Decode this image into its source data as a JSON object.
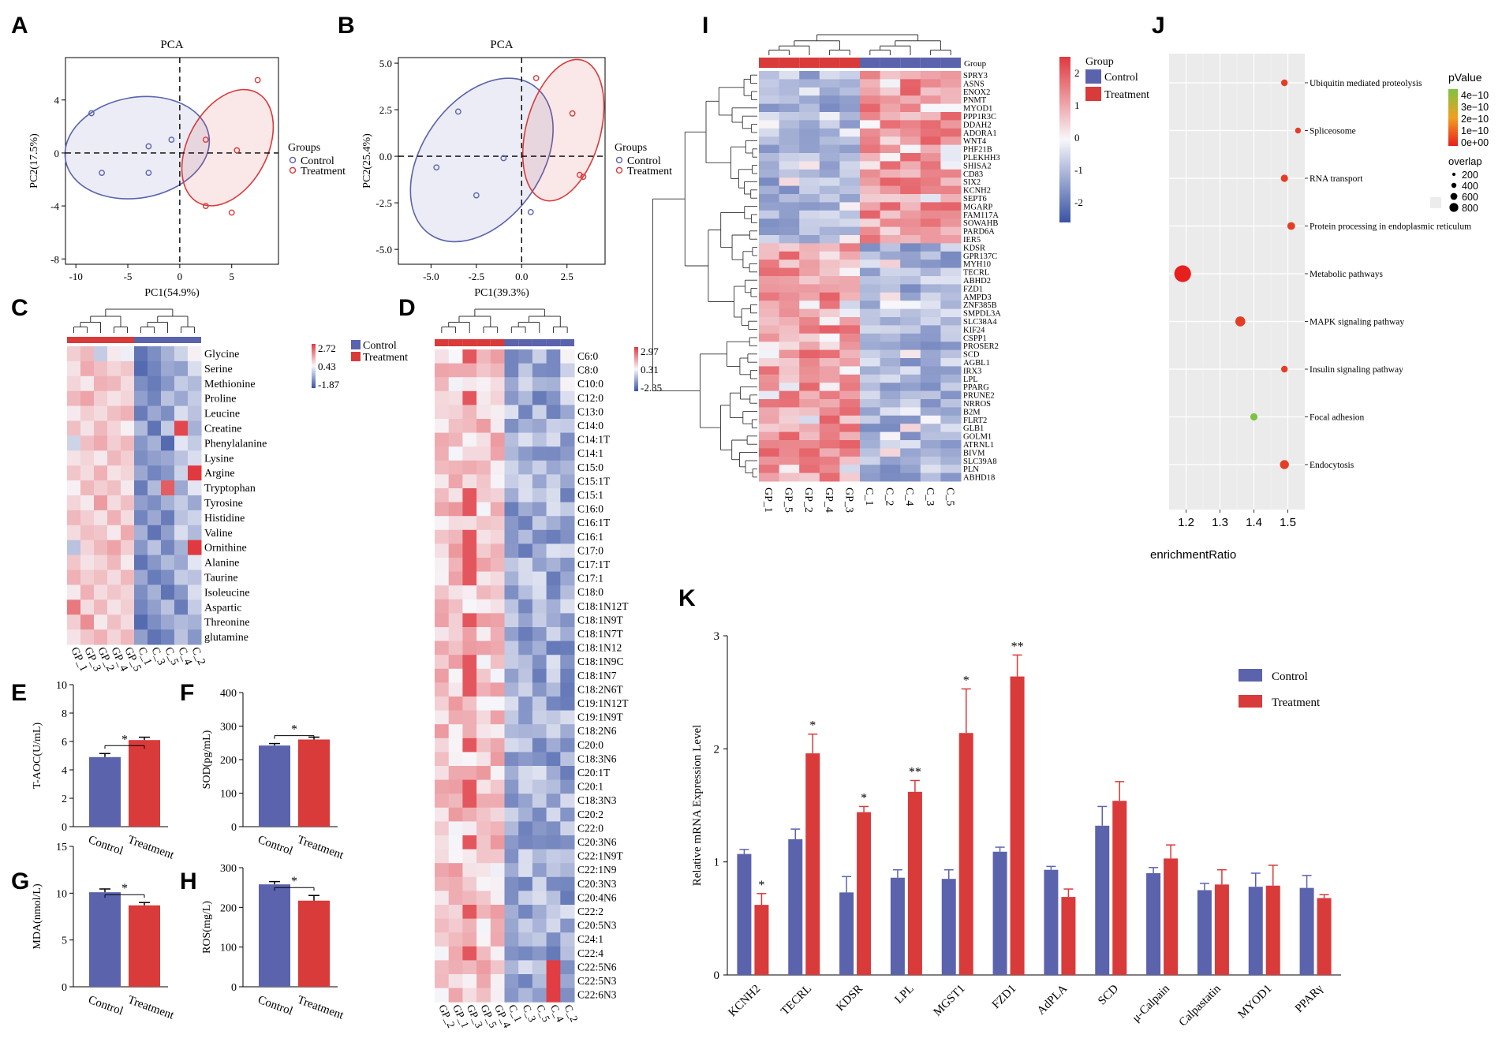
{
  "panels": {
    "A": {
      "letter": "A"
    },
    "B": {
      "letter": "B"
    },
    "C": {
      "letter": "C"
    },
    "D": {
      "letter": "D"
    },
    "E": {
      "letter": "E"
    },
    "F": {
      "letter": "F"
    },
    "G": {
      "letter": "G"
    },
    "H": {
      "letter": "H"
    },
    "I": {
      "letter": "I"
    },
    "J": {
      "letter": "J"
    },
    "K": {
      "letter": "K"
    }
  },
  "colors": {
    "control": "#5b63ad",
    "treatment": "#d93a3a",
    "heat_low": "#3953a4",
    "heat_mid": "#f7f7fb",
    "heat_high": "#e0383f"
  },
  "chart_data": [
    {
      "id": "A",
      "type": "scatter",
      "title": "PCA",
      "xlabel": "PC1(54.9%)",
      "ylabel": "PC2(17.5%)",
      "xlim": [
        -11,
        9.5
      ],
      "ylim": [
        -8.4,
        7.2
      ],
      "xticks": [
        -10,
        -5,
        0,
        5
      ],
      "yticks": [
        -8,
        -4,
        0,
        4
      ],
      "legend_title": "Groups",
      "series": [
        {
          "name": "Control",
          "points": [
            [
              -8.5,
              3.0
            ],
            [
              -7.5,
              -1.5
            ],
            [
              -3.0,
              0.5
            ],
            [
              -3.0,
              -1.5
            ],
            [
              -0.8,
              1.0
            ]
          ]
        },
        {
          "name": "Treatment",
          "points": [
            [
              7.5,
              5.5
            ],
            [
              2.5,
              1.0
            ],
            [
              5.5,
              0.2
            ],
            [
              2.5,
              -4.0
            ],
            [
              5.0,
              -4.5
            ]
          ]
        }
      ],
      "ellipses": [
        {
          "group": "Control",
          "cx": -4.1,
          "cy": 0.4,
          "rx": 7.0,
          "ry": 3.8,
          "angle": -10
        },
        {
          "group": "Treatment",
          "cx": 4.6,
          "cy": 0.4,
          "rx": 6.0,
          "ry": 3.0,
          "angle": -62
        }
      ]
    },
    {
      "id": "B",
      "type": "scatter",
      "title": "PCA",
      "xlabel": "PC1(39.3%)",
      "ylabel": "PC2(25.4%)",
      "xlim": [
        -6.8,
        4.6
      ],
      "ylim": [
        -5.8,
        5.3
      ],
      "xticks": [
        -5.0,
        -2.5,
        0.0,
        2.5
      ],
      "yticks": [
        5.0,
        2.5,
        0.0,
        -2.5,
        -5.0
      ],
      "xticklabels": [
        "-5.0",
        "-2.5",
        "0.0",
        "2.5"
      ],
      "yticklabels": [
        "5.0",
        "2.5",
        "0.0",
        "-2.5",
        "-5.0"
      ],
      "legend_title": "Groups",
      "series": [
        {
          "name": "Control",
          "points": [
            [
              -3.5,
              2.4
            ],
            [
              -4.7,
              -0.6
            ],
            [
              -2.5,
              -2.1
            ],
            [
              -1.0,
              -0.1
            ],
            [
              0.5,
              -3.0
            ]
          ]
        },
        {
          "name": "Treatment",
          "points": [
            [
              0.8,
              4.2
            ],
            [
              2.8,
              2.3
            ],
            [
              3.2,
              -1.0
            ],
            [
              3.4,
              -1.1
            ]
          ]
        }
      ],
      "ellipses": [
        {
          "group": "Control",
          "cx": -2.2,
          "cy": -0.2,
          "rx": 5.0,
          "ry": 3.2,
          "angle": -55
        },
        {
          "group": "Treatment",
          "cx": 2.3,
          "cy": 1.4,
          "rx": 4.0,
          "ry": 2.0,
          "angle": -75
        }
      ]
    },
    {
      "id": "C",
      "type": "heatmap",
      "rows": [
        "Glycine",
        "Serine",
        "Methionine",
        "Proline",
        "Leucine",
        "Creatine",
        "Phenylalanine",
        "Lysine",
        "Argine",
        "Tryptophan",
        "Tyrosine",
        "Histidine",
        "Valine",
        "Ornithine",
        "Alanine",
        "Taurine",
        "Isoleucine",
        "Aspartic",
        "Threonine",
        "glutamine"
      ],
      "columns": [
        "GP_1",
        "GP_3",
        "GP_2",
        "GP_4",
        "GP_5",
        "C_1",
        "C_3",
        "C_5",
        "C_4",
        "C_2"
      ],
      "groups": [
        "Treatment",
        "Treatment",
        "Treatment",
        "Treatment",
        "Treatment",
        "Control",
        "Control",
        "Control",
        "Control",
        "Control"
      ],
      "scale": {
        "max": "2.72",
        "mid": "0.43",
        "min": "-1.87",
        "vmin": -1.87,
        "vmax": 2.72
      },
      "legend": [
        "Control",
        "Treatment"
      ],
      "values": [
        [
          0.6,
          0.9,
          -0.5,
          0.2,
          -0.1,
          -1.5,
          -1.2,
          -0.8,
          -0.4,
          0.1
        ],
        [
          0.3,
          1.1,
          0.8,
          0.5,
          0.7,
          -1.6,
          -1.3,
          -0.9,
          -1.0,
          -0.3
        ],
        [
          0.5,
          0.2,
          1.0,
          0.9,
          0.4,
          -1.2,
          -1.4,
          -1.1,
          -0.5,
          -0.7
        ],
        [
          0.9,
          1.2,
          0.6,
          0.3,
          0.5,
          -1.0,
          -1.3,
          -0.6,
          -0.9,
          -0.5
        ],
        [
          0.2,
          0.6,
          0.4,
          0.8,
          1.0,
          -1.4,
          -0.9,
          -1.2,
          -0.3,
          -0.6
        ],
        [
          0.8,
          0.3,
          0.9,
          0.5,
          0.1,
          -0.7,
          -1.5,
          -0.5,
          2.5,
          -0.8
        ],
        [
          -0.4,
          0.8,
          1.1,
          0.6,
          0.9,
          -1.1,
          -0.8,
          -1.6,
          -0.2,
          -0.5
        ],
        [
          0.3,
          0.5,
          0.2,
          0.9,
          0.6,
          -1.2,
          -1.0,
          -0.9,
          -0.6,
          -0.3
        ],
        [
          0.7,
          0.4,
          1.0,
          0.3,
          0.5,
          -0.9,
          -1.3,
          -1.1,
          -0.4,
          2.7
        ],
        [
          0.1,
          0.9,
          0.6,
          0.8,
          0.2,
          -1.4,
          -0.7,
          2.2,
          -0.9,
          -0.2
        ],
        [
          0.5,
          0.2,
          1.3,
          0.4,
          0.8,
          -1.0,
          -1.2,
          -0.8,
          -0.5,
          -0.9
        ],
        [
          0.9,
          0.6,
          0.3,
          1.0,
          0.4,
          -1.3,
          -0.9,
          -1.4,
          -0.6,
          -0.4
        ],
        [
          0.4,
          0.8,
          0.7,
          0.2,
          1.1,
          -0.8,
          -1.5,
          -1.0,
          -0.3,
          -0.7
        ],
        [
          -0.6,
          0.5,
          0.9,
          1.2,
          0.6,
          -1.1,
          -0.6,
          -1.3,
          -0.8,
          2.7
        ],
        [
          0.7,
          0.3,
          0.5,
          0.9,
          0.2,
          -1.5,
          -1.1,
          -0.7,
          -0.9,
          -0.2
        ],
        [
          1.0,
          0.6,
          0.8,
          0.4,
          0.9,
          -0.9,
          -1.4,
          -1.2,
          -0.5,
          -0.6
        ],
        [
          0.2,
          1.0,
          0.4,
          0.7,
          0.5,
          -1.2,
          -0.8,
          -1.5,
          -1.1,
          -0.3
        ],
        [
          1.8,
          0.4,
          0.9,
          0.3,
          0.6,
          -1.3,
          -1.0,
          -0.6,
          -1.4,
          -0.5
        ],
        [
          0.6,
          1.5,
          0.2,
          0.8,
          0.4,
          -1.6,
          -1.2,
          -0.9,
          -0.7,
          -0.8
        ],
        [
          0.3,
          0.7,
          1.0,
          0.5,
          0.9,
          -1.0,
          -1.5,
          -1.3,
          -0.6,
          -1.1
        ]
      ]
    },
    {
      "id": "D",
      "type": "heatmap",
      "rows": [
        "C6:0",
        "C8:0",
        "C10:0",
        "C12:0",
        "C13:0",
        "C14:0",
        "C14:1T",
        "C14:1",
        "C15:0",
        "C15:1T",
        "C15:1",
        "C16:0",
        "C16:1T",
        "C16:1",
        "C17:0",
        "C17:1T",
        "C17:1",
        "C18:0",
        "C18:1N12T",
        "C18:1N9T",
        "C18:1N7T",
        "C18:1N12",
        "C18:1N9C",
        "C18:1N7",
        "C18:2N6T",
        "C19:1N12T",
        "C19:1N9T",
        "C18:2N6",
        "C20:0",
        "C18:3N6",
        "C20:1T",
        "C20:1",
        "C18:3N3",
        "C20:2",
        "C22:0",
        "C20:3N6",
        "C22:1N9T",
        "C22:1N9",
        "C20:3N3",
        "C20:4N6",
        "C22:2",
        "C20:5N3",
        "C24:1",
        "C22:4",
        "C22:5N6",
        "C22:5N3",
        "C22:6N3"
      ],
      "columns": [
        "GP_2",
        "GP_1",
        "GP_3",
        "GP_5",
        "GP_4",
        "C_1",
        "C_3",
        "C_5",
        "C_4",
        "C_2"
      ],
      "groups": [
        "Treatment",
        "Treatment",
        "Treatment",
        "Treatment",
        "Treatment",
        "Control",
        "Control",
        "Control",
        "Control",
        "Control"
      ],
      "scale": {
        "max": "2.97",
        "mid": "0.31",
        "min": "-2.35",
        "vmin": -2.35,
        "vmax": 2.97
      }
    },
    {
      "id": "E",
      "type": "bar",
      "ylabel": "T-AOC(U/mL)",
      "ylim": [
        0,
        10
      ],
      "yticks": [
        0,
        2,
        4,
        6,
        8,
        10
      ],
      "categories": [
        "Control",
        "Treatment"
      ],
      "values": [
        4.9,
        6.1
      ],
      "errors": [
        0.25,
        0.2
      ],
      "significance": "*"
    },
    {
      "id": "F",
      "type": "bar",
      "ylabel": "SOD(pg/mL)",
      "ylim": [
        0,
        400
      ],
      "yticks": [
        0,
        100,
        200,
        300,
        400
      ],
      "categories": [
        "Control",
        "Treatment"
      ],
      "values": [
        242,
        260
      ],
      "errors": [
        6,
        7
      ],
      "significance": "*"
    },
    {
      "id": "G",
      "type": "bar",
      "ylabel": "MDA(nmol/L)",
      "ylim": [
        0,
        15
      ],
      "yticks": [
        0,
        5,
        10,
        15
      ],
      "categories": [
        "Control",
        "Treatment"
      ],
      "values": [
        10.1,
        8.7
      ],
      "errors": [
        0.35,
        0.3
      ],
      "significance": "*"
    },
    {
      "id": "H",
      "type": "bar",
      "ylabel": "ROS(mg/L)",
      "ylim": [
        0,
        300
      ],
      "yticks": [
        0,
        100,
        200,
        300
      ],
      "categories": [
        "Control",
        "Treatment"
      ],
      "values": [
        258,
        217
      ],
      "errors": [
        7,
        13
      ],
      "significance": "*"
    },
    {
      "id": "I",
      "type": "heatmap",
      "rows": [
        "SPRY3",
        "ASNS",
        "ENOX2",
        "PNMT",
        "MYOD1",
        "PPP1R3C",
        "DDAH2",
        "ADORA1",
        "WNT4",
        "PHF21B",
        "PLEKHH3",
        "SHISA2",
        "CD83",
        "SIX2",
        "KCNH2",
        "SEPT6",
        "MGARP",
        "FAM117A",
        "SOWAHB",
        "PARD6A",
        "IER5",
        "KDSR",
        "GPR137C",
        "MYH10",
        "TECRL",
        "ABHD2",
        "FZD1",
        "AMPD3",
        "ZNF385B",
        "SMPDL3A",
        "SLC38A4",
        "KIF24",
        "CSPP1",
        "PROSER2",
        "SCD",
        "AGBL1",
        "IRX3",
        "LPL",
        "PPARG",
        "PRUNE2",
        "NRROS",
        "B2M",
        "FLRT2",
        "GLB1",
        "GOLM1",
        "ATRNL1",
        "BIVM",
        "SLC39A8",
        "PLN",
        "ABHD18"
      ],
      "columns": [
        "GP_1",
        "GP_5",
        "GP_2",
        "GP_4",
        "GP_3",
        "C_1",
        "C_2",
        "C_4",
        "C_3",
        "C_5"
      ],
      "groups": [
        "Treatment",
        "Treatment",
        "Treatment",
        "Treatment",
        "Treatment",
        "Control",
        "Control",
        "Control",
        "Control",
        "Control"
      ],
      "group_label": "Group",
      "legend_title": "Group",
      "legend": [
        "Control",
        "Treatment"
      ],
      "scale_ticks": [
        "2",
        "1",
        "0",
        "-1",
        "-2"
      ],
      "vmin": -2.4,
      "vmax": 2.4
    },
    {
      "id": "J",
      "type": "scatter",
      "xlabel": "enrichmentRatio",
      "xlim": [
        1.15,
        1.55
      ],
      "xticks": [
        1.2,
        1.3,
        1.4,
        1.5
      ],
      "pathways": [
        "Ubiquitin mediated proteolysis",
        "Spliceosome",
        "RNA transport",
        "Protein processing in endoplasmic reticulum",
        "Metabolic pathways",
        "MAPK signaling pathway",
        "Insulin signaling pathway",
        "Focal adhesion",
        "Endocytosis"
      ],
      "enrichment_ratio": [
        1.49,
        1.53,
        1.49,
        1.51,
        1.19,
        1.36,
        1.49,
        1.4,
        1.49
      ],
      "pvalue": [
        0.0,
        0.0,
        0.0,
        0.0,
        0.0,
        0.0,
        0.0,
        4e-10,
        0.0
      ],
      "overlap": [
        40,
        20,
        60,
        80,
        900,
        200,
        40,
        60,
        140
      ],
      "pvalue_title": "pValue",
      "pvalue_ticks": [
        "4e−10",
        "3e−10",
        "2e−10",
        "1e−10",
        "0e+00"
      ],
      "overlap_title": "overlap",
      "overlap_ticks": [
        "200",
        "400",
        "600",
        "800"
      ]
    },
    {
      "id": "K",
      "type": "bar",
      "ylabel": "Relative mRNA Expression Level",
      "ylim": [
        0,
        3
      ],
      "yticks": [
        0,
        1,
        2,
        3
      ],
      "categories": [
        "KCNH2",
        "TECRL",
        "KDSR",
        "LPL",
        "MGST1",
        "FZD1",
        "AdPLA",
        "SCD",
        "μ-Calpain",
        "Calpastatin",
        "MYOD1",
        "PPARγ"
      ],
      "series": [
        {
          "name": "Control",
          "values": [
            1.07,
            1.2,
            0.73,
            0.86,
            0.85,
            1.09,
            0.93,
            1.32,
            0.9,
            0.75,
            0.78,
            0.77
          ],
          "errors": [
            0.04,
            0.09,
            0.14,
            0.07,
            0.08,
            0.04,
            0.03,
            0.17,
            0.05,
            0.06,
            0.12,
            0.11
          ]
        },
        {
          "name": "Treatment",
          "values": [
            0.62,
            1.96,
            1.44,
            1.62,
            2.14,
            2.64,
            0.69,
            1.54,
            1.03,
            0.8,
            0.79,
            0.68
          ],
          "errors": [
            0.1,
            0.17,
            0.05,
            0.1,
            0.39,
            0.19,
            0.07,
            0.17,
            0.12,
            0.13,
            0.18,
            0.03
          ]
        }
      ],
      "significance": [
        "*",
        "*",
        "*",
        "**",
        "*",
        "**",
        "",
        "",
        "",
        "",
        "",
        ""
      ]
    }
  ]
}
